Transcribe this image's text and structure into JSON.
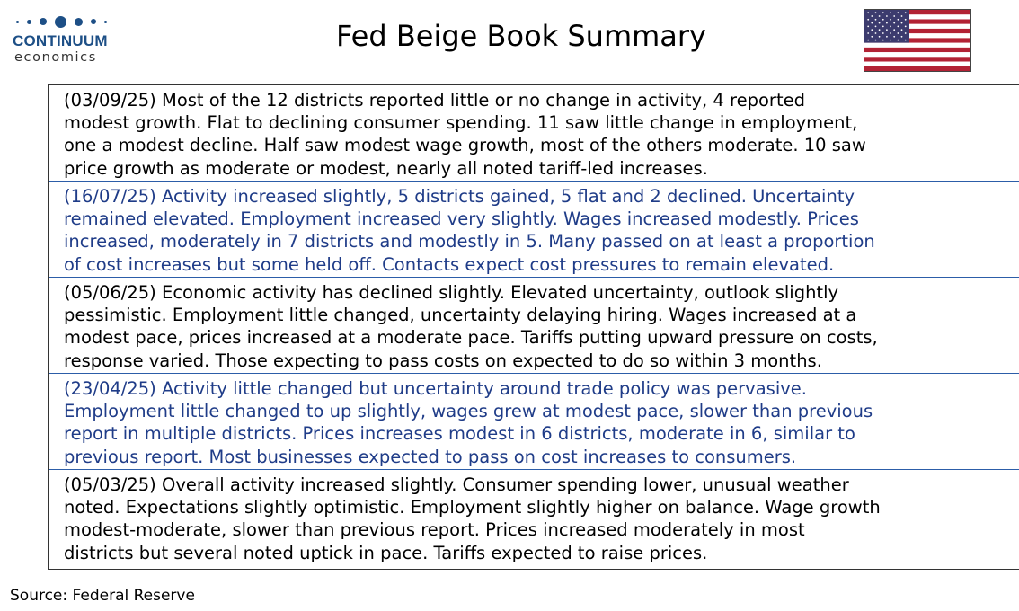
{
  "header": {
    "logo_name": "CONTINUUM",
    "logo_sub": "economics",
    "title": "Fed Beige Book Summary",
    "flag_icon": "us-flag-icon"
  },
  "colors": {
    "brand": "#1d4f86",
    "blue_text": "#1f3c88",
    "divider": "#2c5da8",
    "flag_red": "#b22234",
    "flag_blue": "#3c3b6e"
  },
  "summaries": [
    {
      "style": "black",
      "lines": [
        "(03/09/25) Most of the 12 districts reported little or no change in activity, 4 reported",
        "modest growth. Flat to declining consumer spending. 11 saw little change in employment,",
        "one a  modest decline. Half saw modest wage growth, most of the others moderate. 10 saw",
        "price growth as moderate or modest, nearly all noted tariff-led increases."
      ]
    },
    {
      "style": "blue",
      "lines": [
        "(16/07/25) Activity increased slightly, 5 districts gained, 5 flat and 2 declined. Uncertainty",
        "remained elevated. Employment increased very slightly. Wages increased modestly. Prices",
        "increased, moderately in 7 districts and modestly in 5. Many passed on at least a proportion",
        "of cost increases but some held off. Contacts expect cost pressures to remain elevated."
      ]
    },
    {
      "style": "black",
      "lines": [
        "(05/06/25) Economic activity has declined slightly. Elevated uncertainty, outlook slightly",
        "pessimistic. Employment little changed, uncertainty delaying hiring. Wages increased at a",
        "modest pace, prices increased at a moderate pace. Tariffs putting upward pressure on costs,",
        "response varied. Those expecting to pass costs on expected to do so within 3 months."
      ]
    },
    {
      "style": "blue",
      "lines": [
        "(23/04/25) Activity little changed but uncertainty around trade policy was pervasive.",
        "Employment little changed to up slightly, wages grew at modest pace, slower than previous",
        "report in multiple districts. Prices increases modest in 6 districts, moderate in 6, similar to",
        "previous report. Most businesses expected to pass on cost increases to consumers."
      ]
    },
    {
      "style": "black",
      "lines": [
        "(05/03/25) Overall activity increased slightly.  Consumer spending lower, unusual weather",
        "noted. Expectations slightly optimistic. Employment slightly higher on balance. Wage growth",
        "modest-moderate, slower than previous report. Prices increased moderately in most",
        "districts but several noted uptick in pace. Tariffs expected to raise prices."
      ]
    }
  ],
  "footer": {
    "source": "Source: Federal Reserve"
  }
}
